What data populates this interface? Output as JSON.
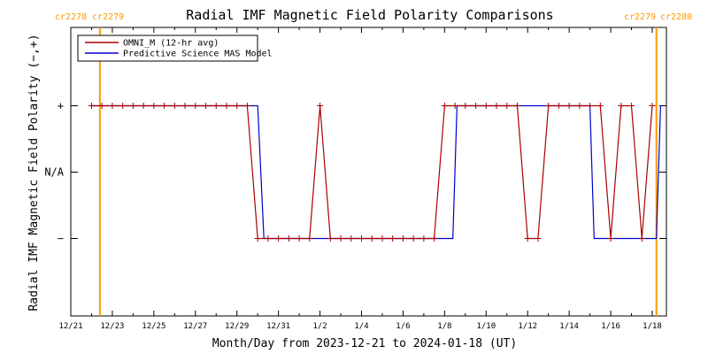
{
  "chart_data": {
    "type": "line",
    "title": "Radial IMF Magnetic Field Polarity Comparisons",
    "xlabel": "Month/Day from 2023-12-21 to 2024-01-18 (UT)",
    "ylabel": "Radial IMF Magnetic Field Polarity (−,+)",
    "x_range": [
      0,
      28.6
    ],
    "y_range": [
      -1.5,
      1.5
    ],
    "x_ticks": [
      {
        "x": 0,
        "label": "12/21"
      },
      {
        "x": 2,
        "label": "12/23"
      },
      {
        "x": 4,
        "label": "12/25"
      },
      {
        "x": 6,
        "label": "12/27"
      },
      {
        "x": 8,
        "label": "12/29"
      },
      {
        "x": 10,
        "label": "12/31"
      },
      {
        "x": 12,
        "label": "1/2"
      },
      {
        "x": 14,
        "label": "1/4"
      },
      {
        "x": 16,
        "label": "1/6"
      },
      {
        "x": 18,
        "label": "1/8"
      },
      {
        "x": 20,
        "label": "1/10"
      },
      {
        "x": 22,
        "label": "1/12"
      },
      {
        "x": 24,
        "label": "1/14"
      },
      {
        "x": 26,
        "label": "1/16"
      },
      {
        "x": 28,
        "label": "1/18"
      }
    ],
    "y_ticks": [
      {
        "y": 1,
        "label": "+"
      },
      {
        "y": 0,
        "label": "N/A"
      },
      {
        "y": -1,
        "label": "−"
      }
    ],
    "carrington_markers": [
      {
        "x": 1.4,
        "left_label": "cr2278",
        "right_label": "cr2279"
      },
      {
        "x": 28.2,
        "left_label": "cr2279",
        "right_label": "cr2280"
      }
    ],
    "legend_position": "top-left",
    "series": [
      {
        "name": "OMNI_M (12-hr avg)",
        "color": "#aa0000",
        "markers": true,
        "x": [
          1.0,
          1.5,
          2.0,
          2.5,
          3.0,
          3.5,
          4.0,
          4.5,
          5.0,
          5.5,
          6.0,
          6.5,
          7.0,
          7.5,
          8.0,
          8.5,
          9.0,
          9.5,
          10.0,
          10.5,
          11.0,
          11.5,
          12.0,
          12.5,
          13.0,
          13.5,
          14.0,
          14.5,
          15.0,
          15.5,
          16.0,
          16.5,
          17.0,
          17.5,
          18.0,
          18.5,
          19.0,
          19.5,
          20.0,
          20.5,
          21.0,
          21.5,
          22.0,
          22.5,
          23.0,
          23.5,
          24.0,
          24.5,
          25.0,
          25.5,
          26.0,
          26.5,
          27.0,
          27.5,
          28.0
        ],
        "y": [
          1,
          1,
          1,
          1,
          1,
          1,
          1,
          1,
          1,
          1,
          1,
          1,
          1,
          1,
          1,
          1,
          -1,
          -1,
          -1,
          -1,
          -1,
          -1,
          1,
          -1,
          -1,
          -1,
          -1,
          -1,
          -1,
          -1,
          -1,
          -1,
          -1,
          -1,
          1,
          1,
          1,
          1,
          1,
          1,
          1,
          1,
          -1,
          -1,
          1,
          1,
          1,
          1,
          1,
          1,
          -1,
          1,
          1,
          -1,
          1
        ]
      },
      {
        "name": "Predictive Science MAS Model",
        "color": "#0000cc",
        "markers": false,
        "x": [
          1.0,
          9.0,
          9.3,
          18.4,
          18.6,
          25.0,
          25.2,
          26.8,
          27.0,
          27.2,
          27.6,
          28.2,
          28.4
        ],
        "y": [
          1,
          1,
          -1,
          -1,
          1,
          1,
          -1,
          -1,
          -1,
          -1,
          -1,
          -1,
          1
        ]
      }
    ]
  }
}
